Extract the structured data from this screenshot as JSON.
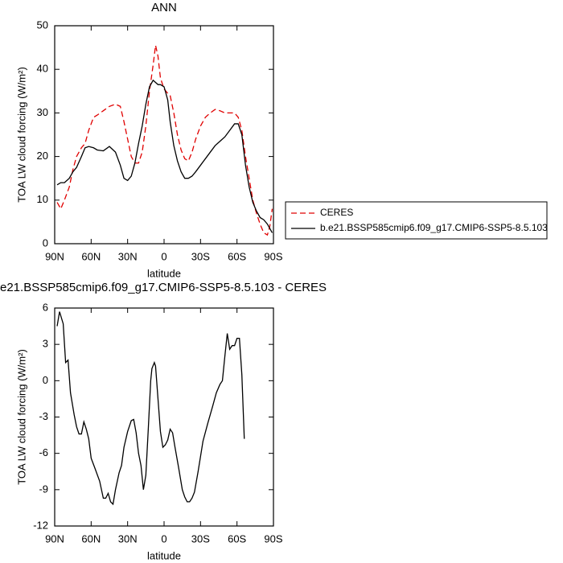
{
  "chart_data": [
    {
      "type": "line",
      "title": "ANN",
      "ylabel": "TOA LW cloud forcing (W/m²)",
      "xlabel": "latitude",
      "xlim": [
        90,
        -90
      ],
      "xticks": [
        {
          "value": 90,
          "label": "90N"
        },
        {
          "value": 60,
          "label": "60N"
        },
        {
          "value": 30,
          "label": "30N"
        },
        0,
        {
          "value": -30,
          "label": "30S"
        },
        {
          "value": -60,
          "label": "60S"
        },
        {
          "value": -90,
          "label": "90S"
        }
      ],
      "ylim": [
        0,
        50
      ],
      "yticks": [
        0,
        10,
        20,
        30,
        40,
        50
      ],
      "legend": "right",
      "x": [
        88,
        85,
        82,
        78,
        75,
        72,
        68,
        65,
        62,
        58,
        55,
        50,
        45,
        40,
        36,
        33,
        30,
        27,
        24,
        21,
        18,
        15,
        12,
        9,
        7,
        5,
        3,
        0,
        -3,
        -5,
        -8,
        -11,
        -14,
        -17,
        -20,
        -23,
        -26,
        -30,
        -34,
        -38,
        -42,
        -46,
        -50,
        -54,
        -58,
        -61,
        -64,
        -67,
        -70,
        -73,
        -76,
        -79,
        -82,
        -85,
        -87,
        -89
      ],
      "series": [
        {
          "name": "CERES",
          "color": "#e00000",
          "linestyle": "dashed",
          "values": [
            9.5,
            8,
            10,
            13,
            17,
            20,
            22,
            23,
            26,
            29,
            29.5,
            30.5,
            31.5,
            32,
            31.5,
            28,
            24,
            20,
            18.5,
            18.5,
            21,
            27,
            35,
            41,
            45.5,
            43,
            38,
            35.5,
            34.5,
            34,
            30,
            25,
            21.5,
            19.5,
            19,
            21,
            24,
            27,
            29,
            30,
            30.8,
            30.5,
            30,
            30,
            30,
            29,
            26,
            20,
            15,
            10,
            7,
            4.5,
            2.5,
            2,
            4,
            8
          ]
        },
        {
          "name": "b.e21.BSSP585cmip6.f09_g17.CMIP6-SSP5-8.5.103",
          "color": "#000000",
          "linestyle": "solid",
          "values": [
            13.5,
            14,
            14,
            15,
            16.5,
            17.5,
            20,
            22,
            22.3,
            22,
            21.5,
            21.3,
            22.3,
            21,
            18,
            15,
            14.5,
            15.5,
            18.5,
            23,
            27,
            32,
            36,
            37.5,
            37,
            36.5,
            36.5,
            36,
            33,
            28,
            22.5,
            19,
            16.5,
            15,
            15,
            15.5,
            16.5,
            18,
            19.5,
            21,
            22.5,
            23.5,
            24.5,
            26,
            27.5,
            27.5,
            25,
            18,
            13,
            9.5,
            7.5,
            6,
            5.5,
            4.5,
            3.5,
            2.5
          ]
        }
      ]
    },
    {
      "type": "line",
      "title": "e21.BSSP585cmip6.f09_g17.CMIP6-SSP5-8.5.103 - CERES",
      "ylabel": "TOA LW cloud forcing (W/m²)",
      "xlabel": "latitude",
      "xlim": [
        90,
        -90
      ],
      "xticks": [
        {
          "value": 90,
          "label": "90N"
        },
        {
          "value": 60,
          "label": "60N"
        },
        {
          "value": 30,
          "label": "30N"
        },
        0,
        {
          "value": -30,
          "label": "30S"
        },
        {
          "value": -60,
          "label": "60S"
        },
        {
          "value": -90,
          "label": "90S"
        }
      ],
      "ylim": [
        -12,
        6
      ],
      "yticks": [
        -12,
        -9,
        -6,
        -3,
        0,
        3,
        6
      ],
      "x": [
        88,
        86,
        83,
        81,
        79,
        77,
        74,
        72,
        70,
        68,
        66,
        64,
        62,
        60,
        57,
        53,
        50,
        48,
        46,
        44,
        42,
        40,
        37,
        35,
        33,
        30,
        27,
        25,
        23,
        21,
        19,
        17,
        15,
        13,
        11,
        10,
        8,
        7,
        5,
        3,
        1,
        -1,
        -3,
        -5,
        -7,
        -9,
        -12,
        -15,
        -17,
        -19,
        -21,
        -23,
        -25,
        -28,
        -32,
        -36,
        -40,
        -43,
        -46,
        -48,
        -50,
        -52,
        -54,
        -56,
        -58,
        -60,
        -62,
        -64,
        -66
      ],
      "series": [
        {
          "color": "#000000",
          "linestyle": "solid",
          "values": [
            4.5,
            5.7,
            4.7,
            1.5,
            1.7,
            -1,
            -2.8,
            -3.8,
            -4.4,
            -4.4,
            -3.4,
            -4,
            -4.8,
            -6.4,
            -7.2,
            -8.3,
            -9.7,
            -9.7,
            -9.3,
            -10,
            -10.2,
            -9,
            -7.6,
            -7,
            -5.5,
            -4.2,
            -3.3,
            -3.2,
            -4.3,
            -6,
            -7,
            -9,
            -7.8,
            -4,
            0,
            1,
            1.5,
            1.2,
            -1.5,
            -4.2,
            -5.5,
            -5.3,
            -4.9,
            -4,
            -4.3,
            -5.5,
            -7.2,
            -9,
            -9.6,
            -10,
            -10,
            -9.7,
            -9.2,
            -7.5,
            -5,
            -3.5,
            -2.1,
            -1,
            -0.3,
            0,
            2,
            3.9,
            2.6,
            2.9,
            2.9,
            3.5,
            3.5,
            0.5,
            -4.8
          ]
        }
      ]
    }
  ]
}
